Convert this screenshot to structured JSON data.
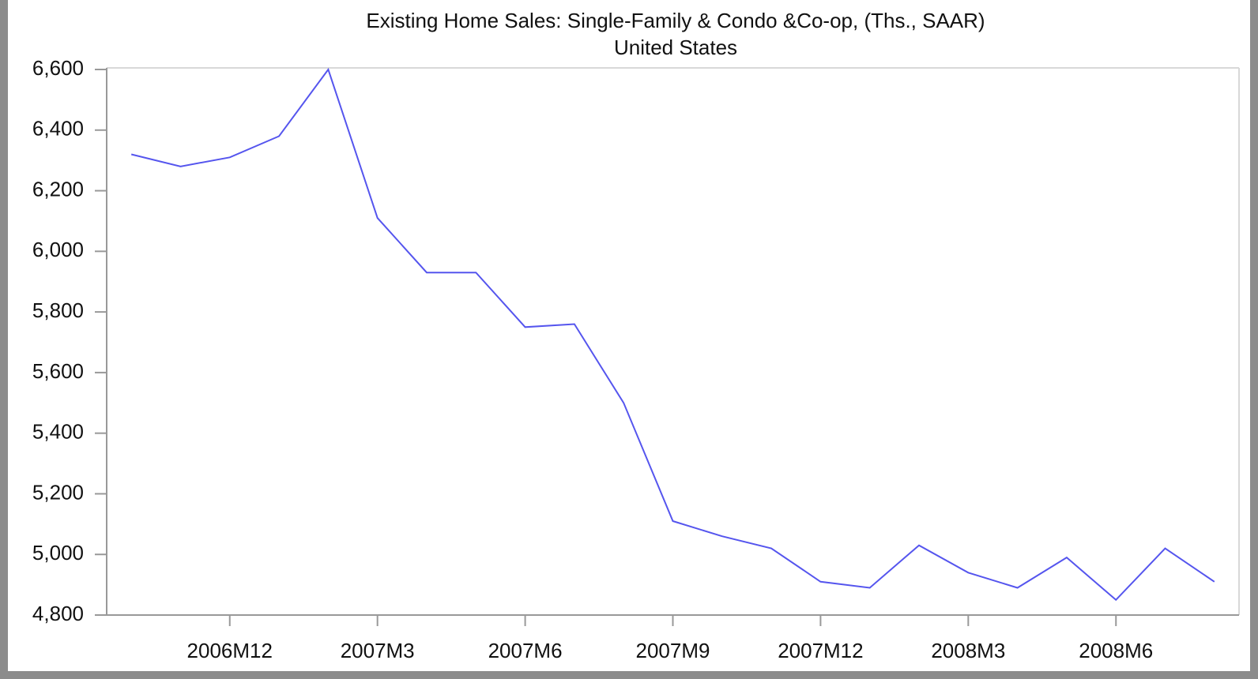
{
  "chart_data": {
    "type": "line",
    "title": "Existing Home Sales: Single-Family & Condo &Co-op, (Ths., SAAR)",
    "subtitle": "United States",
    "categories": [
      null,
      null,
      "2006M12",
      null,
      null,
      "2007M3",
      null,
      null,
      "2007M6",
      null,
      null,
      "2007M9",
      null,
      null,
      "2007M12",
      null,
      null,
      "2008M3",
      null,
      null,
      "2008M6",
      null,
      null
    ],
    "series": [
      {
        "name": "Existing Home Sales",
        "color": "#5555ee",
        "values": [
          6320,
          6280,
          6310,
          6380,
          6600,
          6110,
          5930,
          5930,
          5750,
          5760,
          5500,
          5110,
          5060,
          5020,
          4910,
          4890,
          5030,
          4940,
          4890,
          4990,
          4850,
          5020,
          4910
        ]
      }
    ],
    "ylim": [
      4800,
      6600
    ],
    "yticks": [
      {
        "value": 4800,
        "label": "4,800"
      },
      {
        "value": 5000,
        "label": "5,000"
      },
      {
        "value": 5200,
        "label": "5,200"
      },
      {
        "value": 5400,
        "label": "5,400"
      },
      {
        "value": 5600,
        "label": "5,600"
      },
      {
        "value": 5800,
        "label": "5,800"
      },
      {
        "value": 6000,
        "label": "6,000"
      },
      {
        "value": 6200,
        "label": "6,200"
      },
      {
        "value": 6400,
        "label": "6,400"
      },
      {
        "value": 6600,
        "label": "6,600"
      }
    ],
    "grid": false
  }
}
